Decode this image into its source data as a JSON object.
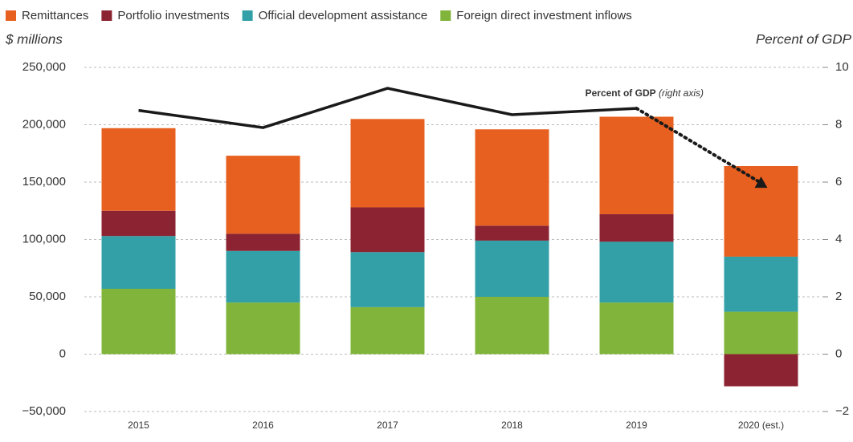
{
  "chart_data": {
    "type": "bar",
    "y_label": "$ millions",
    "y2_label": "Percent of GDP",
    "annotation": {
      "bold": "Percent of GDP",
      "italic": "(right axis)"
    },
    "categories": [
      "2015",
      "2016",
      "2017",
      "2018",
      "2019",
      "2020 (est.)"
    ],
    "series": [
      {
        "name": "Remittances",
        "color": "#e8601f",
        "values": [
          72000,
          68000,
          77000,
          84000,
          85000,
          79000
        ]
      },
      {
        "name": "Portfolio investments",
        "color": "#8b2332",
        "values": [
          22000,
          15000,
          39000,
          13000,
          24000,
          -28000
        ]
      },
      {
        "name": "Official development assistance",
        "color": "#33a0a8",
        "values": [
          46000,
          45000,
          48000,
          49000,
          53000,
          48000
        ]
      },
      {
        "name": "Foreign direct investment inflows",
        "color": "#80b43a",
        "values": [
          57000,
          45000,
          41000,
          50000,
          45000,
          37000
        ]
      }
    ],
    "line": {
      "name": "Percent of GDP",
      "color": "#1a1a1a",
      "axis": "y2",
      "values": [
        8.5,
        7.9,
        9.27,
        8.35,
        8.57,
        5.97
      ],
      "dotted_last_segment": true
    },
    "ylim": [
      -50000,
      250000
    ],
    "yticks": [
      {
        "value": -50000,
        "label": "−50,000"
      },
      0,
      {
        "value": 50000,
        "label": "50,000"
      },
      {
        "value": 100000,
        "label": "100,000"
      },
      {
        "value": 150000,
        "label": "150,000"
      },
      {
        "value": 200000,
        "label": "200,000"
      },
      {
        "value": 250000,
        "label": "250,000"
      }
    ],
    "y2lim": [
      -2,
      10
    ],
    "y2ticks": [
      {
        "value": -2,
        "label": "−2"
      },
      0,
      2,
      4,
      6,
      8,
      10
    ],
    "grid": true
  }
}
